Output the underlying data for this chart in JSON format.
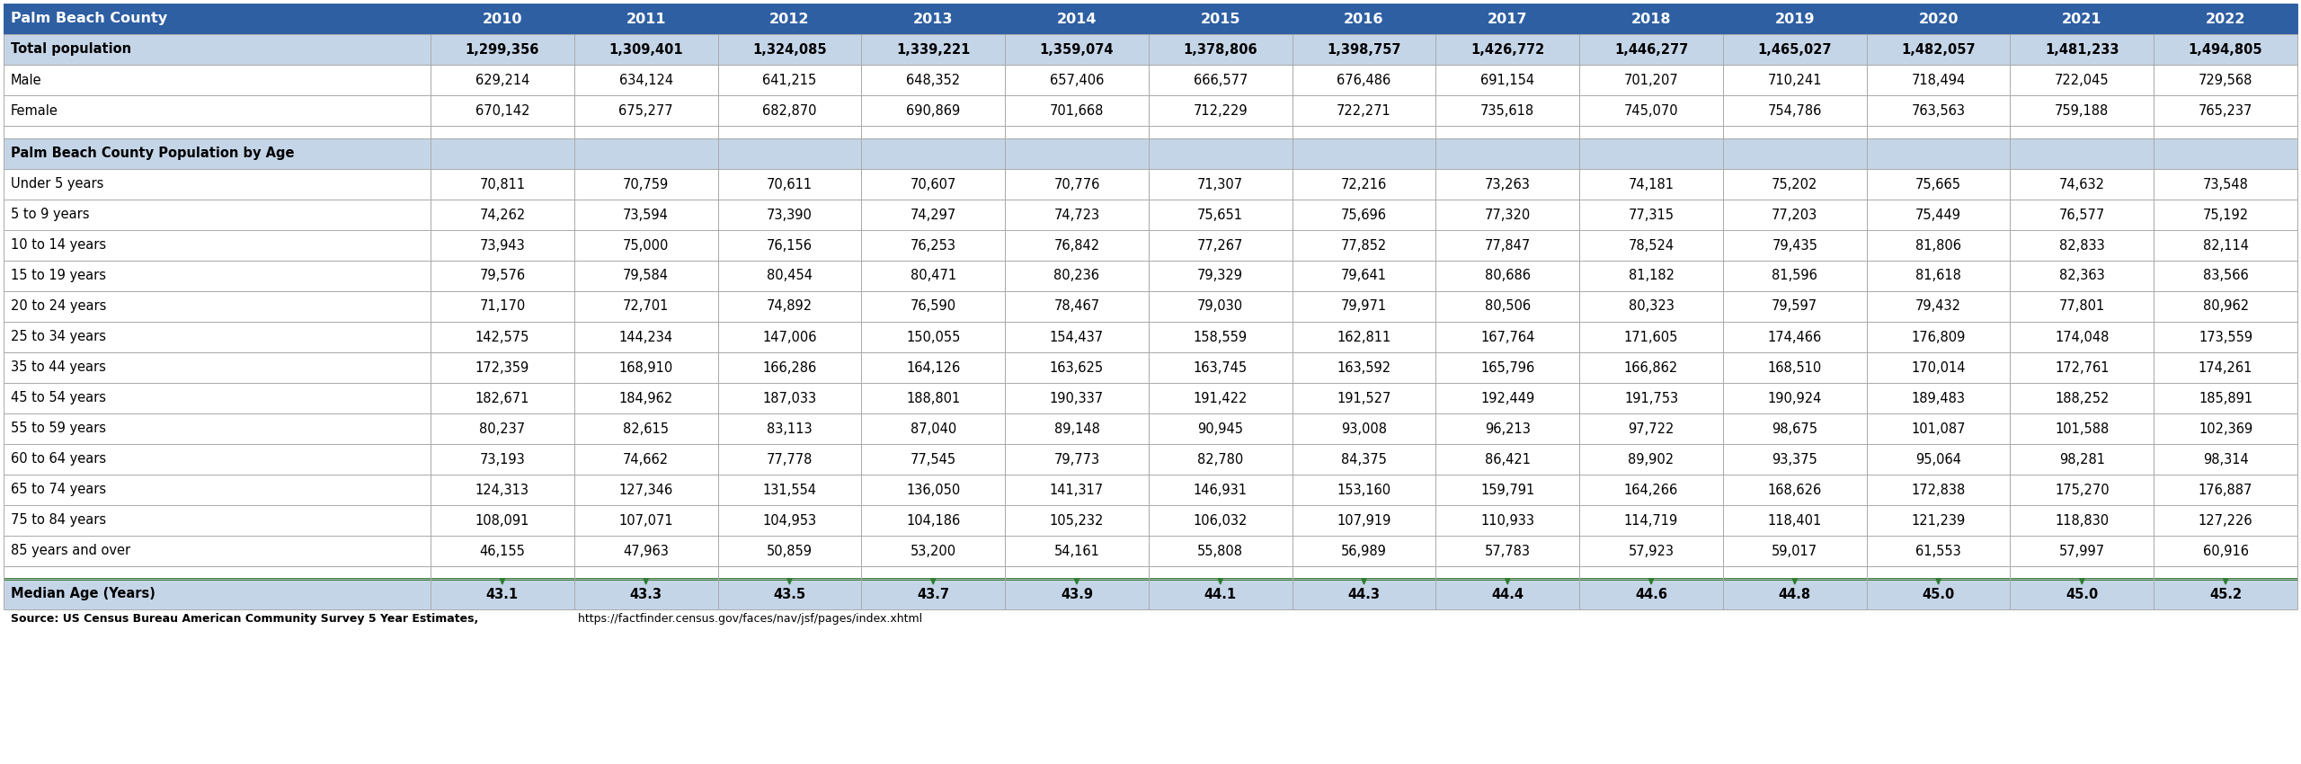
{
  "header_row": [
    "Palm Beach County",
    "2010",
    "2011",
    "2012",
    "2013",
    "2014",
    "2015",
    "2016",
    "2017",
    "2018",
    "2019",
    "2020",
    "2021",
    "2022"
  ],
  "rows": [
    {
      "label": "Total population",
      "bold": true,
      "bg": "#c5d5e8",
      "values": [
        "1,299,356",
        "1,309,401",
        "1,324,085",
        "1,339,221",
        "1,359,074",
        "1,378,806",
        "1,398,757",
        "1,426,772",
        "1,446,277",
        "1,465,027",
        "1,482,057",
        "1,481,233",
        "1,494,805"
      ]
    },
    {
      "label": "Male",
      "bold": false,
      "bg": "#ffffff",
      "values": [
        "629,214",
        "634,124",
        "641,215",
        "648,352",
        "657,406",
        "666,577",
        "676,486",
        "691,154",
        "701,207",
        "710,241",
        "718,494",
        "722,045",
        "729,568"
      ]
    },
    {
      "label": "Female",
      "bold": false,
      "bg": "#ffffff",
      "values": [
        "670,142",
        "675,277",
        "682,870",
        "690,869",
        "701,668",
        "712,229",
        "722,271",
        "735,618",
        "745,070",
        "754,786",
        "763,563",
        "759,188",
        "765,237"
      ]
    },
    {
      "label": "",
      "bold": false,
      "bg": "#ffffff",
      "values": [
        "",
        "",
        "",
        "",
        "",
        "",
        "",
        "",
        "",
        "",
        "",
        "",
        ""
      ],
      "empty": true
    },
    {
      "label": "Palm Beach County Population by Age",
      "bold": true,
      "bg": "#c5d5e8",
      "values": [
        "",
        "",
        "",
        "",
        "",
        "",
        "",
        "",
        "",
        "",
        "",
        "",
        ""
      ]
    },
    {
      "label": "Under 5 years",
      "bold": false,
      "bg": "#ffffff",
      "values": [
        "70,811",
        "70,759",
        "70,611",
        "70,607",
        "70,776",
        "71,307",
        "72,216",
        "73,263",
        "74,181",
        "75,202",
        "75,665",
        "74,632",
        "73,548"
      ]
    },
    {
      "label": "5 to 9 years",
      "bold": false,
      "bg": "#ffffff",
      "values": [
        "74,262",
        "73,594",
        "73,390",
        "74,297",
        "74,723",
        "75,651",
        "75,696",
        "77,320",
        "77,315",
        "77,203",
        "75,449",
        "76,577",
        "75,192"
      ]
    },
    {
      "label": "10 to 14 years",
      "bold": false,
      "bg": "#ffffff",
      "values": [
        "73,943",
        "75,000",
        "76,156",
        "76,253",
        "76,842",
        "77,267",
        "77,852",
        "77,847",
        "78,524",
        "79,435",
        "81,806",
        "82,833",
        "82,114"
      ]
    },
    {
      "label": "15 to 19 years",
      "bold": false,
      "bg": "#ffffff",
      "values": [
        "79,576",
        "79,584",
        "80,454",
        "80,471",
        "80,236",
        "79,329",
        "79,641",
        "80,686",
        "81,182",
        "81,596",
        "81,618",
        "82,363",
        "83,566"
      ]
    },
    {
      "label": "20 to 24 years",
      "bold": false,
      "bg": "#ffffff",
      "values": [
        "71,170",
        "72,701",
        "74,892",
        "76,590",
        "78,467",
        "79,030",
        "79,971",
        "80,506",
        "80,323",
        "79,597",
        "79,432",
        "77,801",
        "80,962"
      ]
    },
    {
      "label": "25 to 34 years",
      "bold": false,
      "bg": "#ffffff",
      "values": [
        "142,575",
        "144,234",
        "147,006",
        "150,055",
        "154,437",
        "158,559",
        "162,811",
        "167,764",
        "171,605",
        "174,466",
        "176,809",
        "174,048",
        "173,559"
      ]
    },
    {
      "label": "35 to 44 years",
      "bold": false,
      "bg": "#ffffff",
      "values": [
        "172,359",
        "168,910",
        "166,286",
        "164,126",
        "163,625",
        "163,745",
        "163,592",
        "165,796",
        "166,862",
        "168,510",
        "170,014",
        "172,761",
        "174,261"
      ]
    },
    {
      "label": "45 to 54 years",
      "bold": false,
      "bg": "#ffffff",
      "values": [
        "182,671",
        "184,962",
        "187,033",
        "188,801",
        "190,337",
        "191,422",
        "191,527",
        "192,449",
        "191,753",
        "190,924",
        "189,483",
        "188,252",
        "185,891"
      ]
    },
    {
      "label": "55 to 59 years",
      "bold": false,
      "bg": "#ffffff",
      "values": [
        "80,237",
        "82,615",
        "83,113",
        "87,040",
        "89,148",
        "90,945",
        "93,008",
        "96,213",
        "97,722",
        "98,675",
        "101,087",
        "101,588",
        "102,369"
      ]
    },
    {
      "label": "60 to 64 years",
      "bold": false,
      "bg": "#ffffff",
      "values": [
        "73,193",
        "74,662",
        "77,778",
        "77,545",
        "79,773",
        "82,780",
        "84,375",
        "86,421",
        "89,902",
        "93,375",
        "95,064",
        "98,281",
        "98,314"
      ]
    },
    {
      "label": "65 to 74 years",
      "bold": false,
      "bg": "#ffffff",
      "values": [
        "124,313",
        "127,346",
        "131,554",
        "136,050",
        "141,317",
        "146,931",
        "153,160",
        "159,791",
        "164,266",
        "168,626",
        "172,838",
        "175,270",
        "176,887"
      ]
    },
    {
      "label": "75 to 84 years",
      "bold": false,
      "bg": "#ffffff",
      "values": [
        "108,091",
        "107,071",
        "104,953",
        "104,186",
        "105,232",
        "106,032",
        "107,919",
        "110,933",
        "114,719",
        "118,401",
        "121,239",
        "118,830",
        "127,226"
      ]
    },
    {
      "label": "85 years and over",
      "bold": false,
      "bg": "#ffffff",
      "values": [
        "46,155",
        "47,963",
        "50,859",
        "53,200",
        "54,161",
        "55,808",
        "56,989",
        "57,783",
        "57,923",
        "59,017",
        "61,553",
        "57,997",
        "60,916"
      ]
    },
    {
      "label": "",
      "bold": false,
      "bg": "#ffffff",
      "values": [
        "",
        "",
        "",
        "",
        "",
        "",
        "",
        "",
        "",
        "",
        "",
        "",
        ""
      ],
      "empty": true,
      "green_border": true
    },
    {
      "label": "Median Age (Years)",
      "bold": true,
      "bg": "#c5d5e8",
      "values": [
        "43.1",
        "43.3",
        "43.5",
        "43.7",
        "43.9",
        "44.1",
        "44.3",
        "44.4",
        "44.6",
        "44.8",
        "45.0",
        "45.0",
        "45.2"
      ],
      "median": true
    }
  ],
  "source_bold": "Source: US Census Bureau American Community Survey 5 Year Estimates,",
  "source_normal": " https://factfinder.census.gov/faces/nav/jsf/pages/index.xhtml",
  "header_bg": "#2e5fa3",
  "header_text_color": "#ffffff",
  "section_bg": "#c5d5e8",
  "row_bg": "#ffffff",
  "border_color": "#aaaaaa",
  "green_color": "#2e7d32",
  "text_color": "#000000",
  "fig_width": 25.6,
  "fig_height": 8.5,
  "dpi": 100
}
